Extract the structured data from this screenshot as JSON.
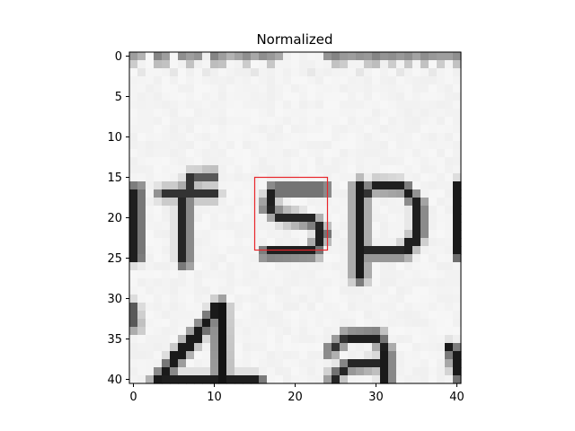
{
  "chart_data": {
    "type": "heatmap",
    "title": "Normalized",
    "colormap": "gray",
    "grid": false,
    "xlim": [
      -0.5,
      40.5
    ],
    "ylim": [
      40.5,
      -0.5
    ],
    "x_ticks": [
      0,
      10,
      20,
      30,
      40
    ],
    "y_ticks": [
      0,
      5,
      10,
      15,
      20,
      25,
      30,
      35,
      40
    ],
    "x_tick_labels": [
      "0",
      "10",
      "20",
      "30",
      "40"
    ],
    "y_tick_labels": [
      "0",
      "5",
      "10",
      "15",
      "20",
      "25",
      "30",
      "35",
      "40"
    ],
    "rows": 41,
    "cols": 41,
    "background_value": 0.97,
    "glyph_segments": [
      {
        "glyph": "f",
        "from": [
          6.3,
          25.5
        ],
        "to": [
          6.3,
          17.5
        ],
        "w": 0.95,
        "v": 0.15
      },
      {
        "glyph": "f",
        "from": [
          6.3,
          17.5
        ],
        "to": [
          7.3,
          15.1
        ],
        "w": 0.9,
        "v": 0.2
      },
      {
        "glyph": "f",
        "from": [
          7.3,
          15.1
        ],
        "to": [
          9.7,
          14.8
        ],
        "w": 0.8,
        "v": 0.35
      },
      {
        "glyph": "f",
        "from": [
          3.6,
          17.0
        ],
        "to": [
          9.9,
          17.0
        ],
        "w": 0.75,
        "v": 0.2
      },
      {
        "glyph": "partial",
        "from": [
          0.4,
          16.5
        ],
        "to": [
          0.4,
          24.8
        ],
        "w": 0.95,
        "v": 0.12
      },
      {
        "glyph": "s",
        "from": [
          23.6,
          16.5
        ],
        "to": [
          17.4,
          16.5
        ],
        "w": 0.8,
        "v": 0.12
      },
      {
        "glyph": "s",
        "from": [
          17.4,
          16.5
        ],
        "to": [
          16.6,
          18.7
        ],
        "w": 0.8,
        "v": 0.12
      },
      {
        "glyph": "s",
        "from": [
          16.6,
          18.7
        ],
        "to": [
          18.0,
          19.8
        ],
        "w": 0.75,
        "v": 0.15
      },
      {
        "glyph": "s",
        "from": [
          18.0,
          19.8
        ],
        "to": [
          22.2,
          20.4
        ],
        "w": 0.8,
        "v": 0.15
      },
      {
        "glyph": "s",
        "from": [
          22.2,
          20.4
        ],
        "to": [
          23.5,
          21.9
        ],
        "w": 0.8,
        "v": 0.15
      },
      {
        "glyph": "s",
        "from": [
          23.5,
          21.9
        ],
        "to": [
          22.3,
          24.3
        ],
        "w": 0.8,
        "v": 0.12
      },
      {
        "glyph": "s",
        "from": [
          22.3,
          24.3
        ],
        "to": [
          16.4,
          24.4
        ],
        "w": 0.8,
        "v": 0.12
      },
      {
        "glyph": "p",
        "from": [
          28.0,
          16.1
        ],
        "to": [
          28.0,
          27.3
        ],
        "w": 1.05,
        "v": 0.1
      },
      {
        "glyph": "p",
        "from": [
          28.4,
          17.0
        ],
        "to": [
          29.7,
          16.1
        ],
        "w": 0.7,
        "v": 0.2
      },
      {
        "glyph": "p",
        "from": [
          29.7,
          16.1
        ],
        "to": [
          33.4,
          16.2
        ],
        "w": 0.85,
        "v": 0.12
      },
      {
        "glyph": "p",
        "from": [
          33.4,
          16.2
        ],
        "to": [
          35.3,
          18.5
        ],
        "w": 0.85,
        "v": 0.12
      },
      {
        "glyph": "p",
        "from": [
          35.3,
          18.5
        ],
        "to": [
          35.3,
          22.1
        ],
        "w": 0.9,
        "v": 0.12
      },
      {
        "glyph": "p",
        "from": [
          35.3,
          22.1
        ],
        "to": [
          33.4,
          24.3
        ],
        "w": 0.85,
        "v": 0.12
      },
      {
        "glyph": "p",
        "from": [
          33.4,
          24.3
        ],
        "to": [
          28.6,
          24.3
        ],
        "w": 0.8,
        "v": 0.15
      },
      {
        "glyph": "partial",
        "from": [
          40.4,
          16.2
        ],
        "to": [
          40.4,
          24.6
        ],
        "w": 0.95,
        "v": 0.1
      },
      {
        "glyph": "4",
        "from": [
          10.8,
          30.9
        ],
        "to": [
          3.0,
          40.2
        ],
        "w": 1.0,
        "v": 0.1
      },
      {
        "glyph": "4",
        "from": [
          10.8,
          30.9
        ],
        "to": [
          10.9,
          40.6
        ],
        "w": 1.0,
        "v": 0.08
      },
      {
        "glyph": "4",
        "from": [
          3.0,
          40.2
        ],
        "to": [
          15.5,
          40.2
        ],
        "w": 0.8,
        "v": 0.12
      },
      {
        "glyph": "a",
        "from": [
          24.3,
          36.5
        ],
        "to": [
          26.4,
          34.7
        ],
        "w": 0.8,
        "v": 0.2
      },
      {
        "glyph": "a",
        "from": [
          26.4,
          34.7
        ],
        "to": [
          30.2,
          34.6
        ],
        "w": 0.8,
        "v": 0.12
      },
      {
        "glyph": "a",
        "from": [
          30.2,
          34.6
        ],
        "to": [
          31.3,
          36.6
        ],
        "w": 0.8,
        "v": 0.12
      },
      {
        "glyph": "a",
        "from": [
          31.3,
          36.6
        ],
        "to": [
          31.3,
          40.8
        ],
        "w": 0.9,
        "v": 0.1
      },
      {
        "glyph": "a",
        "from": [
          31.0,
          38.0
        ],
        "to": [
          26.4,
          38.4
        ],
        "w": 0.7,
        "v": 0.15
      },
      {
        "glyph": "a",
        "from": [
          26.4,
          38.4
        ],
        "to": [
          24.7,
          39.8
        ],
        "w": 0.75,
        "v": 0.15
      },
      {
        "glyph": "partial",
        "from": [
          39.4,
          36.2
        ],
        "to": [
          40.4,
          39.6
        ],
        "w": 0.9,
        "v": 0.1
      },
      {
        "glyph": "partial",
        "from": [
          0.0,
          31.0
        ],
        "to": [
          0.3,
          33.5
        ],
        "w": 0.6,
        "v": 0.35
      }
    ],
    "texture_cells": [
      {
        "row": 0,
        "col": 0,
        "v": 0.62
      },
      {
        "row": 0,
        "col": 1,
        "v": 0.7
      },
      {
        "row": 0,
        "col": 3,
        "v": 0.52
      },
      {
        "row": 0,
        "col": 4,
        "v": 0.62
      },
      {
        "row": 0,
        "col": 6,
        "v": 0.56
      },
      {
        "row": 0,
        "col": 7,
        "v": 0.62
      },
      {
        "row": 0,
        "col": 8,
        "v": 0.58
      },
      {
        "row": 0,
        "col": 10,
        "v": 0.52
      },
      {
        "row": 0,
        "col": 11,
        "v": 0.62
      },
      {
        "row": 0,
        "col": 12,
        "v": 0.7
      },
      {
        "row": 0,
        "col": 13,
        "v": 0.64
      },
      {
        "row": 0,
        "col": 14,
        "v": 0.56
      },
      {
        "row": 0,
        "col": 15,
        "v": 0.66
      },
      {
        "row": 0,
        "col": 16,
        "v": 0.56
      },
      {
        "row": 0,
        "col": 17,
        "v": 0.6
      },
      {
        "row": 0,
        "col": 18,
        "v": 0.66
      },
      {
        "row": 0,
        "col": 24,
        "v": 0.58
      },
      {
        "row": 0,
        "col": 25,
        "v": 0.52
      },
      {
        "row": 0,
        "col": 26,
        "v": 0.6
      },
      {
        "row": 0,
        "col": 27,
        "v": 0.62
      },
      {
        "row": 0,
        "col": 28,
        "v": 0.58
      },
      {
        "row": 0,
        "col": 29,
        "v": 0.6
      },
      {
        "row": 0,
        "col": 30,
        "v": 0.52
      },
      {
        "row": 0,
        "col": 31,
        "v": 0.58
      },
      {
        "row": 0,
        "col": 32,
        "v": 0.56
      },
      {
        "row": 0,
        "col": 33,
        "v": 0.6
      },
      {
        "row": 0,
        "col": 34,
        "v": 0.56
      },
      {
        "row": 0,
        "col": 35,
        "v": 0.64
      },
      {
        "row": 0,
        "col": 36,
        "v": 0.56
      },
      {
        "row": 0,
        "col": 37,
        "v": 0.6
      },
      {
        "row": 0,
        "col": 38,
        "v": 0.62
      },
      {
        "row": 0,
        "col": 39,
        "v": 0.62
      },
      {
        "row": 0,
        "col": 40,
        "v": 0.56
      },
      {
        "row": 1,
        "col": 0,
        "v": 0.8
      },
      {
        "row": 1,
        "col": 3,
        "v": 0.74
      },
      {
        "row": 1,
        "col": 4,
        "v": 0.76
      },
      {
        "row": 1,
        "col": 7,
        "v": 0.76
      },
      {
        "row": 1,
        "col": 10,
        "v": 0.74
      },
      {
        "row": 1,
        "col": 11,
        "v": 0.76
      },
      {
        "row": 1,
        "col": 14,
        "v": 0.8
      },
      {
        "row": 1,
        "col": 17,
        "v": 0.78
      },
      {
        "row": 1,
        "col": 25,
        "v": 0.76
      },
      {
        "row": 1,
        "col": 26,
        "v": 0.8
      },
      {
        "row": 1,
        "col": 29,
        "v": 0.78
      },
      {
        "row": 1,
        "col": 30,
        "v": 0.74
      },
      {
        "row": 1,
        "col": 32,
        "v": 0.8
      },
      {
        "row": 1,
        "col": 34,
        "v": 0.78
      },
      {
        "row": 1,
        "col": 36,
        "v": 0.76
      },
      {
        "row": 1,
        "col": 38,
        "v": 0.8
      },
      {
        "row": 1,
        "col": 40,
        "v": 0.76
      },
      {
        "row": 2,
        "col": 1,
        "v": 0.9
      },
      {
        "row": 2,
        "col": 5,
        "v": 0.9
      },
      {
        "row": 2,
        "col": 9,
        "v": 0.91
      },
      {
        "row": 2,
        "col": 15,
        "v": 0.9
      },
      {
        "row": 2,
        "col": 22,
        "v": 0.91
      },
      {
        "row": 2,
        "col": 28,
        "v": 0.9
      },
      {
        "row": 2,
        "col": 33,
        "v": 0.9
      },
      {
        "row": 2,
        "col": 37,
        "v": 0.91
      }
    ],
    "highlight_box": {
      "x0": 15.0,
      "y0": 15.0,
      "x1": 24.0,
      "y1": 24.0,
      "color": "#e8262b"
    }
  }
}
